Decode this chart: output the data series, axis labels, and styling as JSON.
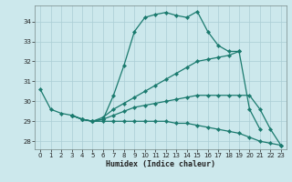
{
  "xlabel": "Humidex (Indice chaleur)",
  "bg_color": "#cce8ec",
  "grid_color": "#aacdd4",
  "line_color": "#1a7a6e",
  "xlim": [
    -0.5,
    23.5
  ],
  "ylim": [
    27.6,
    34.8
  ],
  "yticks": [
    28,
    29,
    30,
    31,
    32,
    33,
    34
  ],
  "xticks": [
    0,
    1,
    2,
    3,
    4,
    5,
    6,
    7,
    8,
    9,
    10,
    11,
    12,
    13,
    14,
    15,
    16,
    17,
    18,
    19,
    20,
    21,
    22,
    23
  ],
  "line1_x": [
    0,
    1,
    2,
    3,
    4,
    5,
    6,
    7,
    8,
    9,
    10,
    11,
    12,
    13,
    14,
    15,
    16,
    17,
    18,
    19,
    20,
    21
  ],
  "line1_y": [
    30.6,
    29.6,
    29.4,
    29.3,
    29.1,
    29.0,
    29.1,
    30.3,
    31.8,
    33.5,
    34.2,
    34.35,
    34.45,
    34.3,
    34.2,
    34.5,
    33.5,
    32.8,
    32.5,
    32.5,
    29.6,
    28.6
  ],
  "line2_x": [
    3,
    4,
    5,
    6,
    7,
    8,
    9,
    10,
    11,
    12,
    13,
    14,
    15,
    16,
    17,
    18,
    19
  ],
  "line2_y": [
    29.3,
    29.1,
    29.0,
    29.2,
    29.6,
    29.9,
    30.2,
    30.5,
    30.8,
    31.1,
    31.4,
    31.7,
    32.0,
    32.1,
    32.2,
    32.3,
    32.5
  ],
  "line3_x": [
    3,
    4,
    5,
    6,
    7,
    8,
    9,
    10,
    11,
    12,
    13,
    14,
    15,
    16,
    17,
    18,
    19,
    20,
    21,
    22,
    23
  ],
  "line3_y": [
    29.3,
    29.1,
    29.0,
    29.1,
    29.3,
    29.5,
    29.7,
    29.8,
    29.9,
    30.0,
    30.1,
    30.2,
    30.3,
    30.3,
    30.3,
    30.3,
    30.3,
    30.3,
    29.6,
    28.6,
    27.8
  ],
  "line4_x": [
    3,
    4,
    5,
    6,
    7,
    8,
    9,
    10,
    11,
    12,
    13,
    14,
    15,
    16,
    17,
    18,
    19,
    20,
    21,
    22,
    23
  ],
  "line4_y": [
    29.3,
    29.1,
    29.0,
    29.0,
    29.0,
    29.0,
    29.0,
    29.0,
    29.0,
    29.0,
    28.9,
    28.9,
    28.8,
    28.7,
    28.6,
    28.5,
    28.4,
    28.2,
    28.0,
    27.9,
    27.8
  ]
}
